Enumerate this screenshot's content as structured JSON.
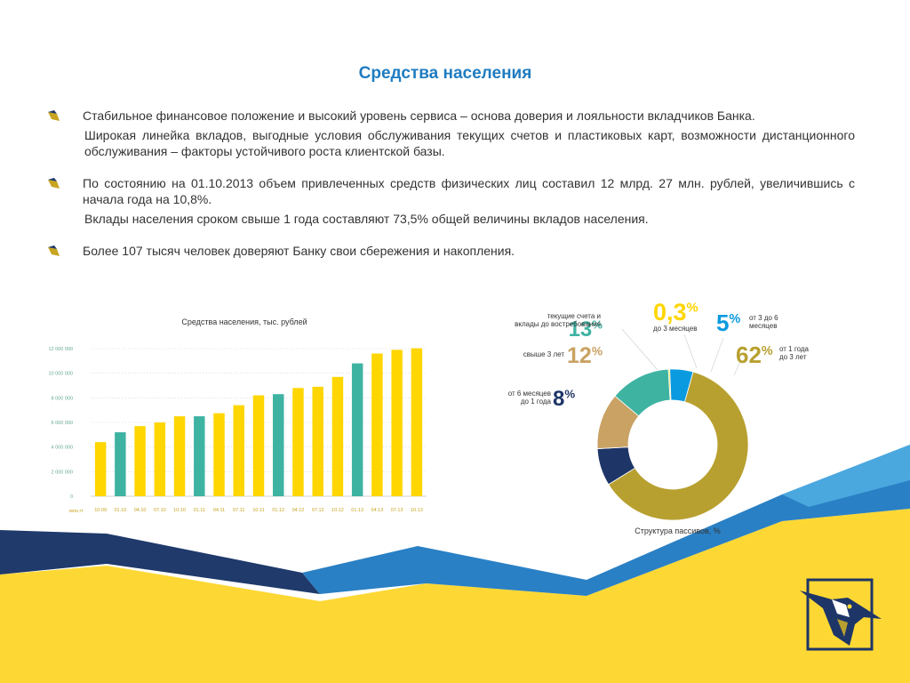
{
  "title": "Средства населения",
  "bullets": [
    {
      "text": "Стабильное финансовое положение и высокий уровень сервиса – основа доверия и лояльности вкладчиков Банка.",
      "cont": "Широкая линейка вкладов, выгодные условия обслуживания текущих счетов и пластиковых карт, возможности дистанционного обслуживания – факторы устойчивого роста клиентской базы."
    },
    {
      "text": "По состоянию на 01.10.2013 объем привлеченных средств физических лиц составил 12 млрд. 27 млн. рублей, увеличившись с начала года на 10,8%.",
      "cont": "Вклады населения сроком свыше 1 года составляют 73,5% общей величины вкладов населения."
    },
    {
      "text": "Более 107 тысяч человек доверяют Банку свои сбережения и накопления."
    }
  ],
  "colors": {
    "title": "#1f7cc0",
    "yellow": "#ffd600",
    "teal": "#3fb3a2",
    "olive": "#b8a030",
    "navy": "#1e3567",
    "blue": "#0a9ae0",
    "tan": "#c9a264",
    "wave_navy": "#1f3a6b",
    "wave_blue": "#2a80c4",
    "wave_yellow": "#fdd835"
  },
  "chart_data": [
    {
      "type": "bar",
      "title": "Средства населения, тыс. рублей",
      "corner_label": "млн.гт",
      "categories": [
        "10.09",
        "01.10",
        "04.10",
        "07.10",
        "10.10",
        "01.11",
        "04.11",
        "07.11",
        "10.11",
        "01.12",
        "04.12",
        "07.12",
        "10.12",
        "01.13",
        "04.13",
        "07.13",
        "10.13"
      ],
      "values": [
        4400000,
        5200000,
        5700000,
        6000000,
        6500000,
        6500000,
        6750000,
        7400000,
        8200000,
        8300000,
        8800000,
        8900000,
        9700000,
        10800000,
        11600000,
        11900000,
        12027000
      ],
      "highlight": [
        false,
        true,
        false,
        false,
        false,
        true,
        false,
        false,
        false,
        true,
        false,
        false,
        false,
        true,
        false,
        false,
        false
      ],
      "y_ticks": [
        "0",
        "2 000 000",
        "4 000 000",
        "6 000 000",
        "8 000 000",
        "10 000 000",
        "12 000 000"
      ],
      "ylim": [
        0,
        12000000
      ],
      "grid": true
    },
    {
      "type": "pie",
      "caption": "Структура пассивов, %",
      "slices": [
        {
          "pct": "13",
          "value": 13,
          "label": "текущие счета и вклады до востребования",
          "label_lines": [
            "текущие счета и",
            "вклады до востребования"
          ],
          "color": "#3fb3a2"
        },
        {
          "pct": "0,3",
          "value": 0.3,
          "label": "до 3 месяцев",
          "label_lines": [
            "до 3 месяцев"
          ],
          "color": "#ffd600"
        },
        {
          "pct": "5",
          "value": 5,
          "label": "от 3 до 6 месяцев",
          "label_lines": [
            "от 3 до 6",
            "месяцев"
          ],
          "color": "#0a9ae0"
        },
        {
          "pct": "62",
          "value": 62,
          "label": "от 1 года до 3 лет",
          "label_lines": [
            "от 1 года",
            "до 3 лет"
          ],
          "color": "#b8a030"
        },
        {
          "pct": "8",
          "value": 8,
          "label": "от 6 месяцев до 1 года",
          "label_lines": [
            "от 6 месяцев",
            "до 1 года"
          ],
          "color": "#1e3567"
        },
        {
          "pct": "12",
          "value": 12,
          "label": "свыше 3 лет",
          "label_lines": [
            "свыше 3 лет"
          ],
          "color": "#c9a264"
        }
      ]
    }
  ]
}
